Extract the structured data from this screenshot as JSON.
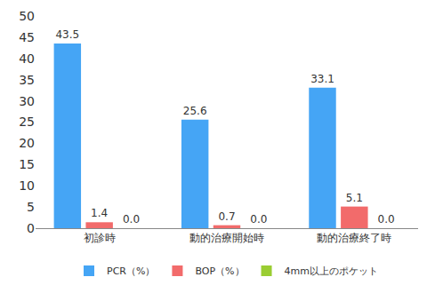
{
  "chart_data": {
    "type": "bar",
    "categories": [
      "初診時",
      "動的治療開始時",
      "動的治療終了時"
    ],
    "series": [
      {
        "name": "PCR（%）",
        "color": "#45a5f5",
        "values": [
          43.5,
          25.6,
          33.1
        ]
      },
      {
        "name": "BOP（%）",
        "color": "#f26b6b",
        "values": [
          1.4,
          0.7,
          5.1
        ]
      },
      {
        "name": "4mm以上のポケット",
        "color": "#9acd32",
        "values": [
          0,
          0,
          0
        ],
        "value_labels": [
          "0.0",
          "0.0",
          "0.0"
        ]
      }
    ],
    "ylim": [
      0,
      50
    ],
    "yticks": [
      0,
      5,
      10,
      15,
      20,
      25,
      30,
      35,
      40,
      45,
      50
    ],
    "grid": false,
    "legend": "bottom",
    "data_labels": true
  }
}
